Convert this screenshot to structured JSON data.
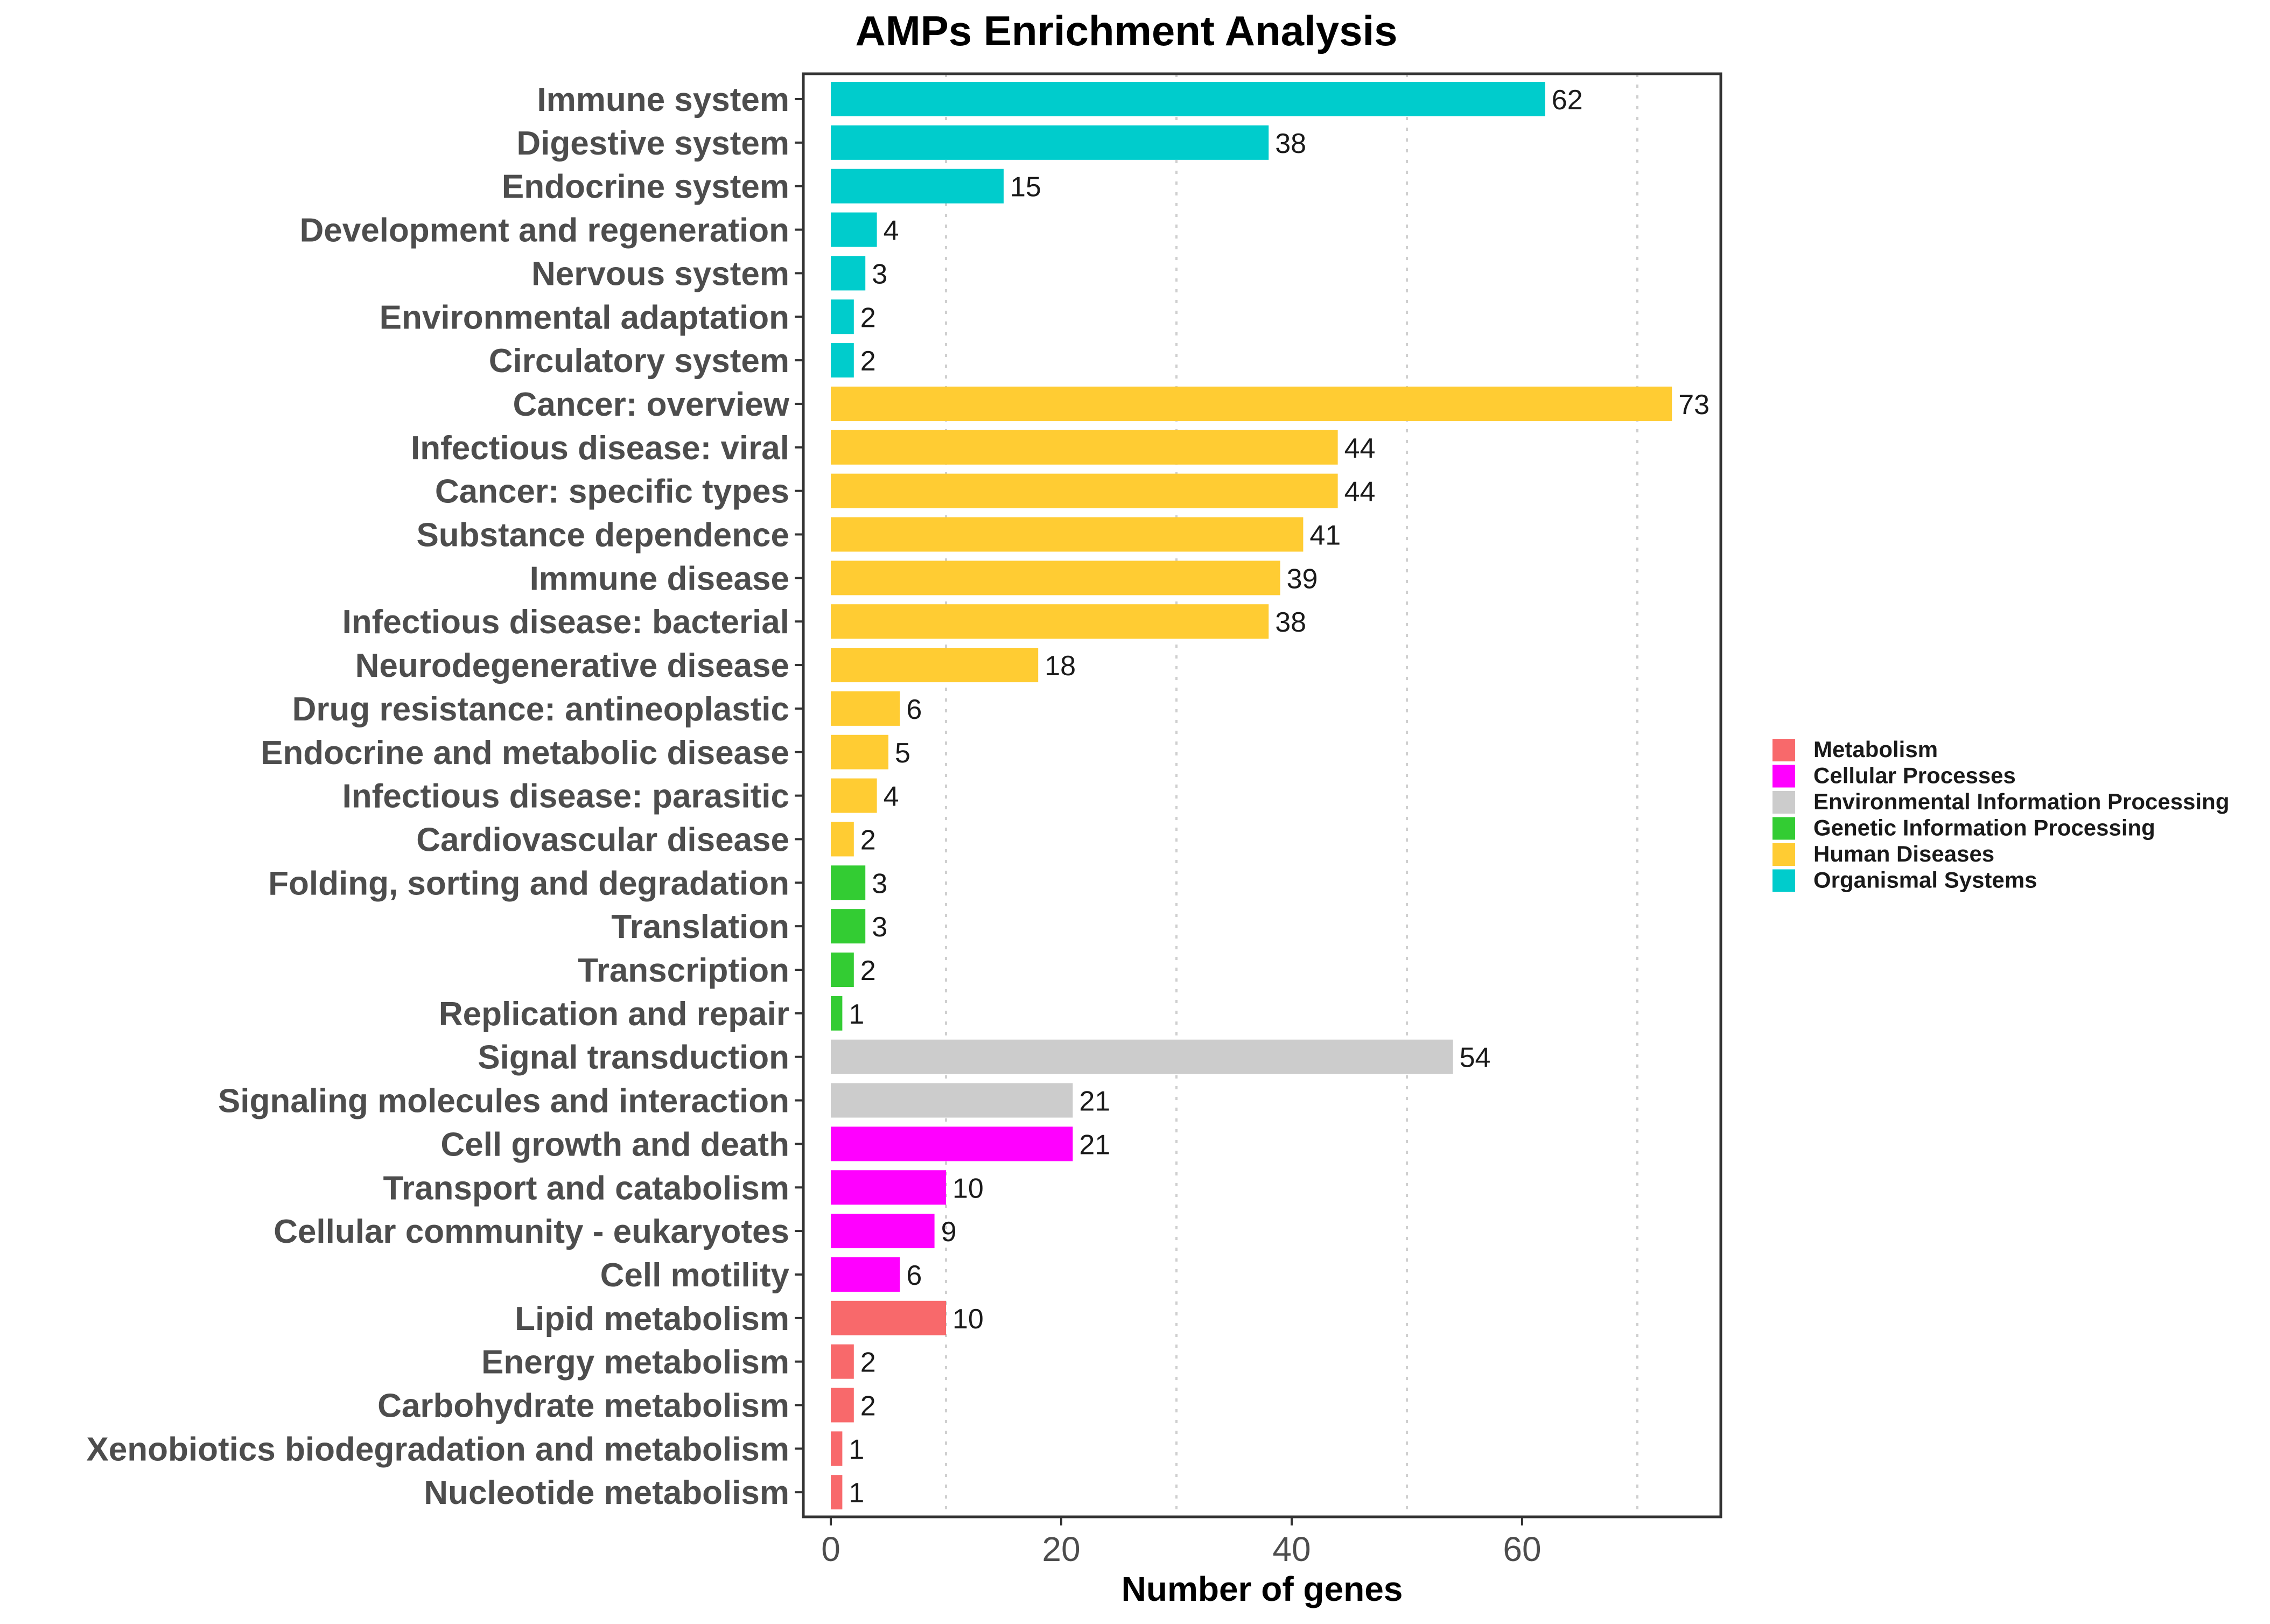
{
  "chart_data": {
    "type": "bar",
    "orientation": "horizontal",
    "title": "AMPs Enrichment Analysis",
    "xlabel": "Number of genes",
    "ylabel": "",
    "xlim": [
      0,
      77
    ],
    "xticks": [
      0,
      20,
      40,
      60
    ],
    "grid_major": [
      10,
      30,
      50,
      70
    ],
    "grid_style": "dotted vertical",
    "legend_position": "right",
    "groups": [
      {
        "name": "Metabolism",
        "color": "#F8696B"
      },
      {
        "name": "Cellular Processes",
        "color": "#FF00FF"
      },
      {
        "name": "Environmental Information Processing",
        "color": "#CCCCCC"
      },
      {
        "name": "Genetic Information Processing",
        "color": "#33CC33"
      },
      {
        "name": "Human Diseases",
        "color": "#FFCC33"
      },
      {
        "name": "Organismal Systems",
        "color": "#00CCCC"
      }
    ],
    "bars": [
      {
        "category": "Immune system",
        "value": 62,
        "group": "Organismal Systems"
      },
      {
        "category": "Digestive system",
        "value": 38,
        "group": "Organismal Systems"
      },
      {
        "category": "Endocrine system",
        "value": 15,
        "group": "Organismal Systems"
      },
      {
        "category": "Development and regeneration",
        "value": 4,
        "group": "Organismal Systems"
      },
      {
        "category": "Nervous system",
        "value": 3,
        "group": "Organismal Systems"
      },
      {
        "category": "Environmental adaptation",
        "value": 2,
        "group": "Organismal Systems"
      },
      {
        "category": "Circulatory system",
        "value": 2,
        "group": "Organismal Systems"
      },
      {
        "category": "Cancer: overview",
        "value": 73,
        "group": "Human Diseases"
      },
      {
        "category": "Infectious disease: viral",
        "value": 44,
        "group": "Human Diseases"
      },
      {
        "category": "Cancer: specific types",
        "value": 44,
        "group": "Human Diseases"
      },
      {
        "category": "Substance dependence",
        "value": 41,
        "group": "Human Diseases"
      },
      {
        "category": "Immune disease",
        "value": 39,
        "group": "Human Diseases"
      },
      {
        "category": "Infectious disease: bacterial",
        "value": 38,
        "group": "Human Diseases"
      },
      {
        "category": "Neurodegenerative disease",
        "value": 18,
        "group": "Human Diseases"
      },
      {
        "category": "Drug resistance: antineoplastic",
        "value": 6,
        "group": "Human Diseases"
      },
      {
        "category": "Endocrine and metabolic disease",
        "value": 5,
        "group": "Human Diseases"
      },
      {
        "category": "Infectious disease: parasitic",
        "value": 4,
        "group": "Human Diseases"
      },
      {
        "category": "Cardiovascular disease",
        "value": 2,
        "group": "Human Diseases"
      },
      {
        "category": "Folding, sorting and degradation",
        "value": 3,
        "group": "Genetic Information Processing"
      },
      {
        "category": "Translation",
        "value": 3,
        "group": "Genetic Information Processing"
      },
      {
        "category": "Transcription",
        "value": 2,
        "group": "Genetic Information Processing"
      },
      {
        "category": "Replication and repair",
        "value": 1,
        "group": "Genetic Information Processing"
      },
      {
        "category": "Signal transduction",
        "value": 54,
        "group": "Environmental Information Processing"
      },
      {
        "category": "Signaling molecules and interaction",
        "value": 21,
        "group": "Environmental Information Processing"
      },
      {
        "category": "Cell growth and death",
        "value": 21,
        "group": "Cellular Processes"
      },
      {
        "category": "Transport and catabolism",
        "value": 10,
        "group": "Cellular Processes"
      },
      {
        "category": "Cellular community - eukaryotes",
        "value": 9,
        "group": "Cellular Processes"
      },
      {
        "category": "Cell motility",
        "value": 6,
        "group": "Cellular Processes"
      },
      {
        "category": "Lipid metabolism",
        "value": 10,
        "group": "Metabolism"
      },
      {
        "category": "Energy metabolism",
        "value": 2,
        "group": "Metabolism"
      },
      {
        "category": "Carbohydrate metabolism",
        "value": 2,
        "group": "Metabolism"
      },
      {
        "category": "Xenobiotics biodegradation and metabolism",
        "value": 1,
        "group": "Metabolism"
      },
      {
        "category": "Nucleotide metabolism",
        "value": 1,
        "group": "Metabolism"
      }
    ]
  }
}
